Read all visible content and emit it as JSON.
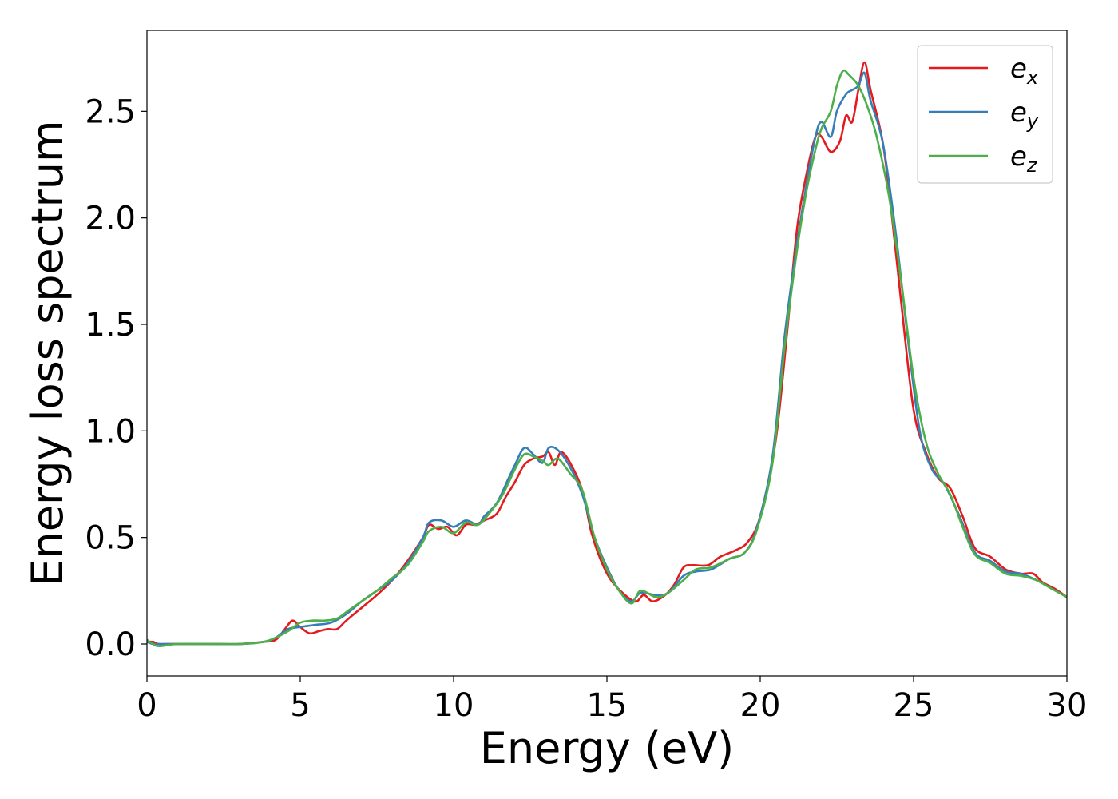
{
  "chart_data": {
    "type": "line",
    "title": "",
    "xlabel": "Energy (eV)",
    "ylabel": "Energy loss spectrum",
    "xlim": [
      0,
      30
    ],
    "ylim": [
      -0.15,
      2.88
    ],
    "xticks": [
      0,
      5,
      10,
      15,
      20,
      25,
      30
    ],
    "xtick_labels": [
      "0",
      "5",
      "10",
      "15",
      "20",
      "25",
      "30"
    ],
    "yticks": [
      0.0,
      0.5,
      1.0,
      1.5,
      2.0,
      2.5
    ],
    "ytick_labels": [
      "0.0",
      "0.5",
      "1.0",
      "1.5",
      "2.0",
      "2.5"
    ],
    "grid": false,
    "legend_position": "top-right",
    "series": [
      {
        "name": "e",
        "subscript": "x",
        "color": "#e41a1c",
        "points": [
          [
            0,
            0.01
          ],
          [
            0.2,
            0.01
          ],
          [
            0.4,
            0.0
          ],
          [
            1,
            0.0
          ],
          [
            2,
            0.0
          ],
          [
            3,
            0.0
          ],
          [
            3.8,
            0.01
          ],
          [
            4.2,
            0.02
          ],
          [
            4.5,
            0.07
          ],
          [
            4.75,
            0.11
          ],
          [
            5.0,
            0.08
          ],
          [
            5.3,
            0.05
          ],
          [
            5.6,
            0.06
          ],
          [
            5.9,
            0.07
          ],
          [
            6.2,
            0.07
          ],
          [
            6.5,
            0.11
          ],
          [
            7.0,
            0.17
          ],
          [
            7.5,
            0.23
          ],
          [
            8.0,
            0.3
          ],
          [
            8.5,
            0.39
          ],
          [
            9.0,
            0.5
          ],
          [
            9.2,
            0.56
          ],
          [
            9.5,
            0.54
          ],
          [
            9.8,
            0.55
          ],
          [
            10.1,
            0.51
          ],
          [
            10.4,
            0.56
          ],
          [
            10.7,
            0.56
          ],
          [
            11.0,
            0.58
          ],
          [
            11.4,
            0.61
          ],
          [
            11.7,
            0.69
          ],
          [
            12.0,
            0.76
          ],
          [
            12.3,
            0.84
          ],
          [
            12.6,
            0.87
          ],
          [
            12.9,
            0.88
          ],
          [
            13.1,
            0.9
          ],
          [
            13.3,
            0.84
          ],
          [
            13.5,
            0.9
          ],
          [
            13.8,
            0.85
          ],
          [
            14.2,
            0.72
          ],
          [
            14.5,
            0.52
          ],
          [
            14.9,
            0.36
          ],
          [
            15.3,
            0.27
          ],
          [
            15.9,
            0.2
          ],
          [
            16.2,
            0.23
          ],
          [
            16.5,
            0.2
          ],
          [
            16.9,
            0.23
          ],
          [
            17.2,
            0.28
          ],
          [
            17.5,
            0.36
          ],
          [
            17.8,
            0.37
          ],
          [
            18.3,
            0.37
          ],
          [
            18.7,
            0.41
          ],
          [
            19.2,
            0.44
          ],
          [
            19.6,
            0.48
          ],
          [
            20.0,
            0.6
          ],
          [
            20.5,
            0.95
          ],
          [
            20.9,
            1.5
          ],
          [
            21.2,
            1.95
          ],
          [
            21.5,
            2.2
          ],
          [
            21.8,
            2.38
          ],
          [
            22.0,
            2.38
          ],
          [
            22.3,
            2.31
          ],
          [
            22.6,
            2.36
          ],
          [
            22.8,
            2.48
          ],
          [
            23.0,
            2.45
          ],
          [
            23.2,
            2.6
          ],
          [
            23.4,
            2.73
          ],
          [
            23.6,
            2.6
          ],
          [
            24.0,
            2.35
          ],
          [
            24.3,
            2.0
          ],
          [
            24.6,
            1.6
          ],
          [
            25.0,
            1.1
          ],
          [
            25.4,
            0.9
          ],
          [
            25.8,
            0.78
          ],
          [
            26.2,
            0.73
          ],
          [
            26.6,
            0.6
          ],
          [
            27.0,
            0.45
          ],
          [
            27.5,
            0.41
          ],
          [
            28.0,
            0.35
          ],
          [
            28.5,
            0.33
          ],
          [
            28.9,
            0.33
          ],
          [
            29.2,
            0.29
          ],
          [
            29.6,
            0.26
          ],
          [
            30.0,
            0.22
          ]
        ]
      },
      {
        "name": "e",
        "subscript": "y",
        "color": "#377eb8",
        "points": [
          [
            0,
            0.01
          ],
          [
            0.2,
            0.0
          ],
          [
            0.4,
            0.0
          ],
          [
            1,
            0.0
          ],
          [
            2,
            0.0
          ],
          [
            3,
            0.0
          ],
          [
            3.8,
            0.01
          ],
          [
            4.2,
            0.03
          ],
          [
            4.6,
            0.07
          ],
          [
            5.0,
            0.08
          ],
          [
            5.5,
            0.09
          ],
          [
            6.0,
            0.1
          ],
          [
            6.5,
            0.14
          ],
          [
            7.0,
            0.2
          ],
          [
            7.5,
            0.25
          ],
          [
            8.0,
            0.3
          ],
          [
            8.5,
            0.38
          ],
          [
            9.0,
            0.5
          ],
          [
            9.2,
            0.57
          ],
          [
            9.6,
            0.58
          ],
          [
            10.0,
            0.55
          ],
          [
            10.4,
            0.58
          ],
          [
            10.8,
            0.56
          ],
          [
            11.0,
            0.6
          ],
          [
            11.4,
            0.66
          ],
          [
            11.8,
            0.78
          ],
          [
            12.0,
            0.84
          ],
          [
            12.3,
            0.92
          ],
          [
            12.6,
            0.89
          ],
          [
            12.9,
            0.85
          ],
          [
            13.1,
            0.92
          ],
          [
            13.4,
            0.91
          ],
          [
            13.8,
            0.83
          ],
          [
            14.2,
            0.7
          ],
          [
            14.6,
            0.5
          ],
          [
            15.0,
            0.36
          ],
          [
            15.4,
            0.25
          ],
          [
            15.8,
            0.2
          ],
          [
            16.1,
            0.24
          ],
          [
            16.6,
            0.23
          ],
          [
            17.0,
            0.24
          ],
          [
            17.5,
            0.32
          ],
          [
            17.9,
            0.34
          ],
          [
            18.4,
            0.35
          ],
          [
            19.0,
            0.4
          ],
          [
            19.5,
            0.43
          ],
          [
            19.9,
            0.55
          ],
          [
            20.4,
            0.88
          ],
          [
            20.8,
            1.45
          ],
          [
            21.2,
            1.88
          ],
          [
            21.5,
            2.15
          ],
          [
            21.8,
            2.38
          ],
          [
            22.0,
            2.45
          ],
          [
            22.3,
            2.38
          ],
          [
            22.5,
            2.5
          ],
          [
            22.8,
            2.58
          ],
          [
            23.0,
            2.6
          ],
          [
            23.2,
            2.62
          ],
          [
            23.4,
            2.68
          ],
          [
            23.6,
            2.55
          ],
          [
            24.0,
            2.35
          ],
          [
            24.4,
            1.95
          ],
          [
            24.8,
            1.45
          ],
          [
            25.2,
            1.0
          ],
          [
            25.6,
            0.82
          ],
          [
            26.0,
            0.75
          ],
          [
            26.5,
            0.6
          ],
          [
            27.0,
            0.43
          ],
          [
            27.5,
            0.39
          ],
          [
            28.0,
            0.34
          ],
          [
            28.5,
            0.33
          ],
          [
            29.0,
            0.3
          ],
          [
            29.5,
            0.26
          ],
          [
            30.0,
            0.22
          ]
        ]
      },
      {
        "name": "e",
        "subscript": "z",
        "color": "#4daf4a",
        "points": [
          [
            0,
            0.02
          ],
          [
            0.2,
            0.0
          ],
          [
            0.4,
            -0.01
          ],
          [
            1,
            0.0
          ],
          [
            2,
            0.0
          ],
          [
            3,
            0.0
          ],
          [
            3.8,
            0.01
          ],
          [
            4.2,
            0.03
          ],
          [
            4.6,
            0.06
          ],
          [
            5.0,
            0.1
          ],
          [
            5.4,
            0.11
          ],
          [
            5.8,
            0.11
          ],
          [
            6.2,
            0.12
          ],
          [
            6.6,
            0.16
          ],
          [
            7.0,
            0.2
          ],
          [
            7.5,
            0.25
          ],
          [
            8.0,
            0.31
          ],
          [
            8.5,
            0.37
          ],
          [
            9.0,
            0.48
          ],
          [
            9.2,
            0.53
          ],
          [
            9.6,
            0.55
          ],
          [
            10.0,
            0.52
          ],
          [
            10.4,
            0.57
          ],
          [
            10.8,
            0.56
          ],
          [
            11.2,
            0.62
          ],
          [
            11.6,
            0.7
          ],
          [
            12.0,
            0.82
          ],
          [
            12.3,
            0.89
          ],
          [
            12.6,
            0.88
          ],
          [
            12.9,
            0.86
          ],
          [
            13.1,
            0.84
          ],
          [
            13.4,
            0.87
          ],
          [
            13.8,
            0.8
          ],
          [
            14.2,
            0.72
          ],
          [
            14.6,
            0.5
          ],
          [
            15.0,
            0.35
          ],
          [
            15.4,
            0.25
          ],
          [
            15.8,
            0.19
          ],
          [
            16.1,
            0.25
          ],
          [
            16.6,
            0.22
          ],
          [
            17.0,
            0.24
          ],
          [
            17.5,
            0.3
          ],
          [
            17.9,
            0.35
          ],
          [
            18.4,
            0.36
          ],
          [
            19.0,
            0.4
          ],
          [
            19.5,
            0.43
          ],
          [
            19.9,
            0.54
          ],
          [
            20.4,
            0.85
          ],
          [
            20.8,
            1.4
          ],
          [
            21.2,
            1.85
          ],
          [
            21.5,
            2.12
          ],
          [
            21.8,
            2.32
          ],
          [
            22.0,
            2.42
          ],
          [
            22.3,
            2.5
          ],
          [
            22.5,
            2.62
          ],
          [
            22.7,
            2.69
          ],
          [
            22.9,
            2.67
          ],
          [
            23.2,
            2.62
          ],
          [
            23.5,
            2.52
          ],
          [
            23.8,
            2.38
          ],
          [
            24.2,
            2.1
          ],
          [
            24.6,
            1.7
          ],
          [
            25.0,
            1.25
          ],
          [
            25.4,
            0.95
          ],
          [
            25.8,
            0.8
          ],
          [
            26.2,
            0.7
          ],
          [
            26.6,
            0.55
          ],
          [
            27.0,
            0.42
          ],
          [
            27.5,
            0.38
          ],
          [
            28.0,
            0.33
          ],
          [
            28.5,
            0.32
          ],
          [
            29.0,
            0.3
          ],
          [
            29.5,
            0.26
          ],
          [
            30.0,
            0.22
          ]
        ]
      }
    ]
  }
}
